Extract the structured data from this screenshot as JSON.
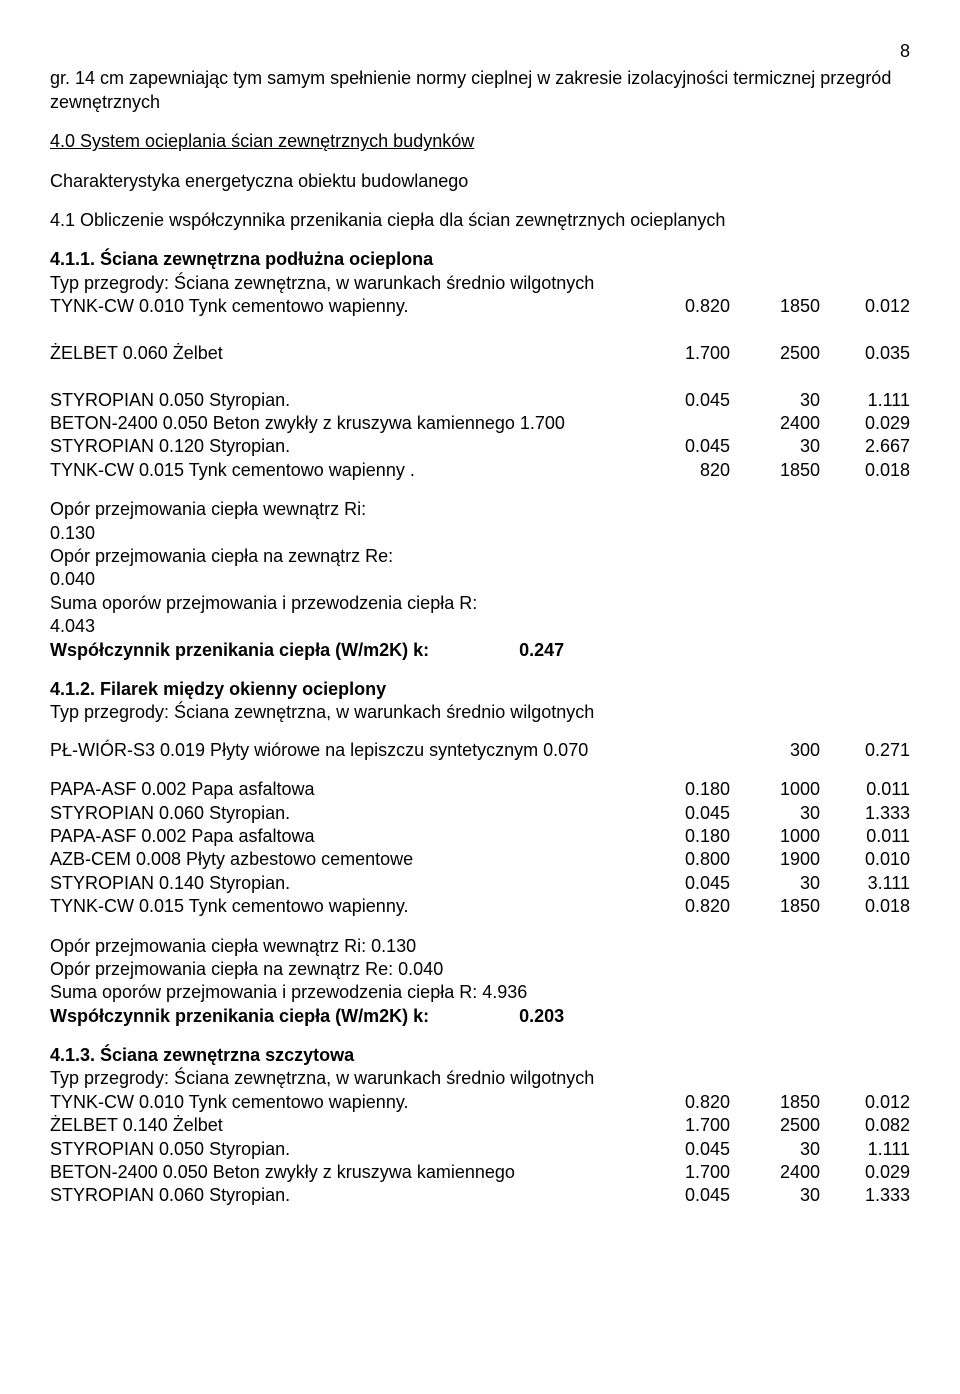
{
  "page_number": "8",
  "intro_para": "gr. 14 cm zapewniając tym samym spełnienie normy cieplnej w zakresie izolacyjności termicznej przegród zewnętrznych",
  "section4_title": "4.0 System  ocieplania  ścian  zewnętrznych budynków",
  "subtitle_energy": "Charakterystyka energetyczna obiektu budowlanego",
  "s41_heading": "4.1 Obliczenie współczynnika przenikania ciepła dla ścian zewnętrznych ocieplanych",
  "s411_heading": "4.1.1.  Ściana zewnętrzna podłużna ocieplona",
  "typ_line": "Typ przegrody: Ściana zewnętrzna, w warunkach średnio wilgotnych",
  "t411": {
    "rows": [
      {
        "c1": "TYNK-CW     0.010 Tynk cementowo wapienny.",
        "c2": "0.820",
        "c3": "1850",
        "c4": "0.012"
      },
      {
        "c1": "",
        "c2": "",
        "c3": "",
        "c4": ""
      },
      {
        "c1": "ŻELBET        0.060 Żelbet",
        "c2": "1.700",
        "c3": "2500",
        "c4": "0.035"
      },
      {
        "c1": "",
        "c2": "",
        "c3": "",
        "c4": ""
      },
      {
        "c1": "STYROPIAN 0.050  Styropian.",
        "c2": "0.045",
        "c3": "30",
        "c4": "1.111"
      },
      {
        "c1": "BETON-2400 0.050 Beton zwykły z kruszywa kamiennego 1.700",
        "c2": "",
        "c3": "2400",
        "c4": "0.029"
      },
      {
        "c1": "STYROPIAN 0.120  Styropian.",
        "c2": "0.045",
        "c3": "30",
        "c4": "2.667"
      },
      {
        "c1": "TYNK-CW   0.015   Tynk cementowo wapienny       .",
        "c2": "820",
        "c3": "1850",
        "c4": "0.018"
      }
    ]
  },
  "calc411": [
    {
      "l": " Opór przejmowania ciepła wewnątrz Ri:",
      "r": "0.130"
    },
    {
      "l": " Opór przejmowania ciepła na zewnątrz Re:",
      "r": "0.040"
    },
    {
      "l": "Suma oporów przejmowania i przewodzenia ciepła R:",
      "r": "4.043"
    }
  ],
  "k411_label": "Współczynnik przenikania ciepła (W/m2K) k:",
  "k411_value": "0.247",
  "s412_heading": "4.1.2.  Filarek między okienny ocieplony",
  "pl_line": {
    "c1": "PŁ-WIÓR-S3  0.019 Płyty wiórowe na lepiszczu syntetycznym 0.070",
    "c2": "",
    "c3": "300",
    "c4": "0.271"
  },
  "t412": {
    "rows": [
      {
        "c1": "PAPA-ASF     0.002 Papa asfaltowa",
        "c2": "0.180",
        "c3": "1000",
        "c4": "0.011"
      },
      {
        "c1": "STYROPIAN  0.060 Styropian.",
        "c2": "0.045",
        "c3": "30",
        "c4": "1.333"
      },
      {
        "c1": "PAPA-ASF     0.002 Papa asfaltowa",
        "c2": "0.180",
        "c3": "1000",
        "c4": "0.011"
      },
      {
        "c1": "AZB-CEM      0.008 Płyty azbestowo cementowe",
        "c2": "0.800",
        "c3": "1900",
        "c4": "0.010"
      },
      {
        "c1": "STYROPIAN 0.140  Styropian.",
        "c2": "0.045",
        "c3": "30",
        "c4": "3.111"
      },
      {
        "c1": "TYNK-CW     0.015 Tynk cementowo wapienny.",
        "c2": "0.820",
        "c3": "1850",
        "c4": "0.018"
      }
    ]
  },
  "calc412": [
    " Opór przejmowania ciepła wewnątrz Ri:   0.130",
    "Opór przejmowania ciepła na zewnątrz Re:         0.040",
    "Suma oporów przejmowania i przewodzenia ciepła R:   4.936"
  ],
  "k412_label": "Współczynnik przenikania ciepła (W/m2K) k:",
  "k412_value": "0.203",
  "s413_heading": "4.1.3.  Ściana zewnętrzna szczytowa",
  "t413": {
    "rows": [
      {
        "c1": "TYNK-CW     0.010 Tynk cementowo wapienny.",
        "c2": "0.820",
        "c3": "1850",
        "c4": "0.012"
      },
      {
        "c1": "ŻELBET        0.140 Żelbet",
        "c2": "1.700",
        "c3": "2500",
        "c4": "0.082"
      },
      {
        "c1": "STYROPIAN  0.050 Styropian.",
        "c2": "0.045",
        "c3": "30",
        "c4": "1.111"
      },
      {
        "c1": "BETON-2400 0.050 Beton zwykły z kruszywa kamiennego",
        "c2": "1.700",
        "c3": "2400",
        "c4": "0.029"
      },
      {
        "c1": "STYROPIAN        0.060 Styropian.",
        "c2": "0.045",
        "c3": "30",
        "c4": "1.333"
      }
    ]
  }
}
